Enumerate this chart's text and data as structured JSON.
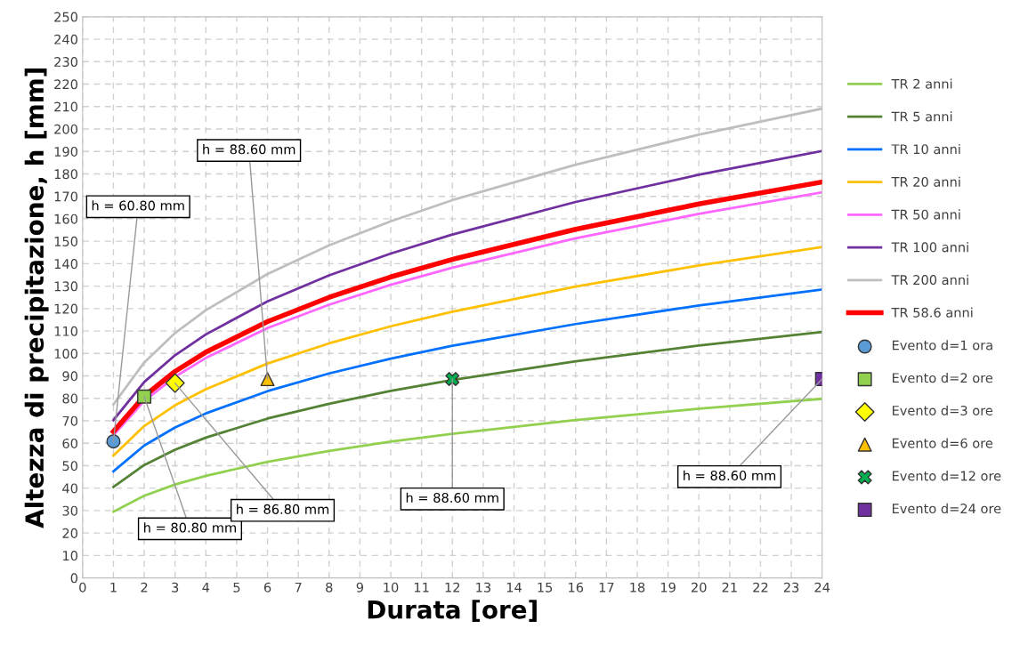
{
  "chart_data": {
    "type": "line",
    "xlabel": "Durata [ore]",
    "ylabel": "Altezza di precipitazione, h [mm]",
    "x": [
      1,
      2,
      3,
      4,
      6,
      8,
      10,
      12,
      16,
      20,
      24
    ],
    "series": [
      {
        "name": "TR 2 anni",
        "color": "#92d050",
        "values": [
          29.5,
          36.6,
          41.6,
          45.5,
          51.7,
          56.6,
          60.7,
          64.2,
          70.3,
          75.4,
          79.8
        ]
      },
      {
        "name": "TR 5 anni",
        "color": "#548235",
        "values": [
          40.5,
          50.3,
          57.1,
          62.5,
          71.0,
          77.6,
          83.3,
          88.2,
          96.5,
          103.5,
          109.6
        ]
      },
      {
        "name": "TR 10 anni",
        "color": "#0070ff",
        "values": [
          47.5,
          59.0,
          67.0,
          73.3,
          83.2,
          91.1,
          97.7,
          103.4,
          113.1,
          121.4,
          128.5
        ]
      },
      {
        "name": "TR 20 anni",
        "color": "#ffc000",
        "values": [
          54.5,
          67.7,
          76.9,
          84.1,
          95.5,
          104.5,
          112.1,
          118.6,
          129.8,
          139.2,
          147.4
        ]
      },
      {
        "name": "TR 50 anni",
        "color": "#ff66ff",
        "values": [
          63.5,
          78.9,
          89.6,
          98.0,
          111.3,
          121.7,
          130.6,
          138.2,
          151.3,
          162.2,
          171.8
        ]
      },
      {
        "name": "TR 100 anni",
        "color": "#7030a0",
        "values": [
          70.3,
          87.3,
          99.2,
          108.5,
          123.2,
          134.8,
          144.5,
          153.0,
          167.5,
          179.6,
          190.2
        ]
      },
      {
        "name": "TR 200 anni",
        "color": "#bfbfbf",
        "values": [
          77.3,
          96.0,
          109.1,
          119.3,
          135.4,
          148.2,
          158.9,
          168.3,
          184.1,
          197.5,
          209.1
        ]
      },
      {
        "name": "TR 58.6 anni",
        "color": "#ff0000",
        "values": [
          65.2,
          81.0,
          92.0,
          100.6,
          114.2,
          125.0,
          134.1,
          141.9,
          155.3,
          166.6,
          176.4
        ]
      },
      {
        "name": "Evento d=1 ora",
        "type": "scatter",
        "marker": "circle",
        "color": "#5b9bd5",
        "x": [
          1
        ],
        "values": [
          60.8
        ]
      },
      {
        "name": "Evento d=2 ore",
        "type": "scatter",
        "marker": "square",
        "color": "#92d050",
        "x": [
          2
        ],
        "values": [
          80.8
        ]
      },
      {
        "name": "Evento d=3 ore",
        "type": "scatter",
        "marker": "diamond",
        "color": "#ffff00",
        "x": [
          3
        ],
        "values": [
          86.8
        ]
      },
      {
        "name": "Evento d=6 ore",
        "type": "scatter",
        "marker": "triangle",
        "color": "#ffc000",
        "x": [
          6
        ],
        "values": [
          88.6
        ]
      },
      {
        "name": "Evento d=12 ore",
        "type": "scatter",
        "marker": "cross",
        "color": "#00b050",
        "x": [
          12
        ],
        "values": [
          88.6
        ]
      },
      {
        "name": "Evento d=24 ore",
        "type": "scatter",
        "marker": "square",
        "color": "#7030a0",
        "x": [
          24
        ],
        "values": [
          88.6
        ]
      }
    ],
    "annotations": [
      {
        "text": "h = 60.80 mm",
        "x": 1,
        "y": 60.8
      },
      {
        "text": "h = 80.80 mm",
        "x": 2,
        "y": 80.8
      },
      {
        "text": "h = 86.80 mm",
        "x": 3,
        "y": 86.8
      },
      {
        "text": "h = 88.60 mm",
        "x": 6,
        "y": 88.6
      },
      {
        "text": "h = 88.60 mm",
        "x": 12,
        "y": 88.6
      },
      {
        "text": "h = 88.60 mm",
        "x": 24,
        "y": 88.6
      }
    ],
    "xlim": [
      0,
      24
    ],
    "xticks": [
      0,
      1,
      2,
      3,
      4,
      5,
      6,
      7,
      8,
      9,
      10,
      11,
      12,
      13,
      14,
      15,
      16,
      17,
      18,
      19,
      20,
      21,
      22,
      23,
      24
    ],
    "ylim": [
      0,
      250
    ],
    "yticks": [
      0,
      10,
      20,
      30,
      40,
      50,
      60,
      70,
      80,
      90,
      100,
      110,
      120,
      130,
      140,
      150,
      160,
      170,
      180,
      190,
      200,
      210,
      220,
      230,
      240,
      250
    ],
    "grid": true,
    "legend": "right",
    "line_style": "solid",
    "marker": "none"
  }
}
